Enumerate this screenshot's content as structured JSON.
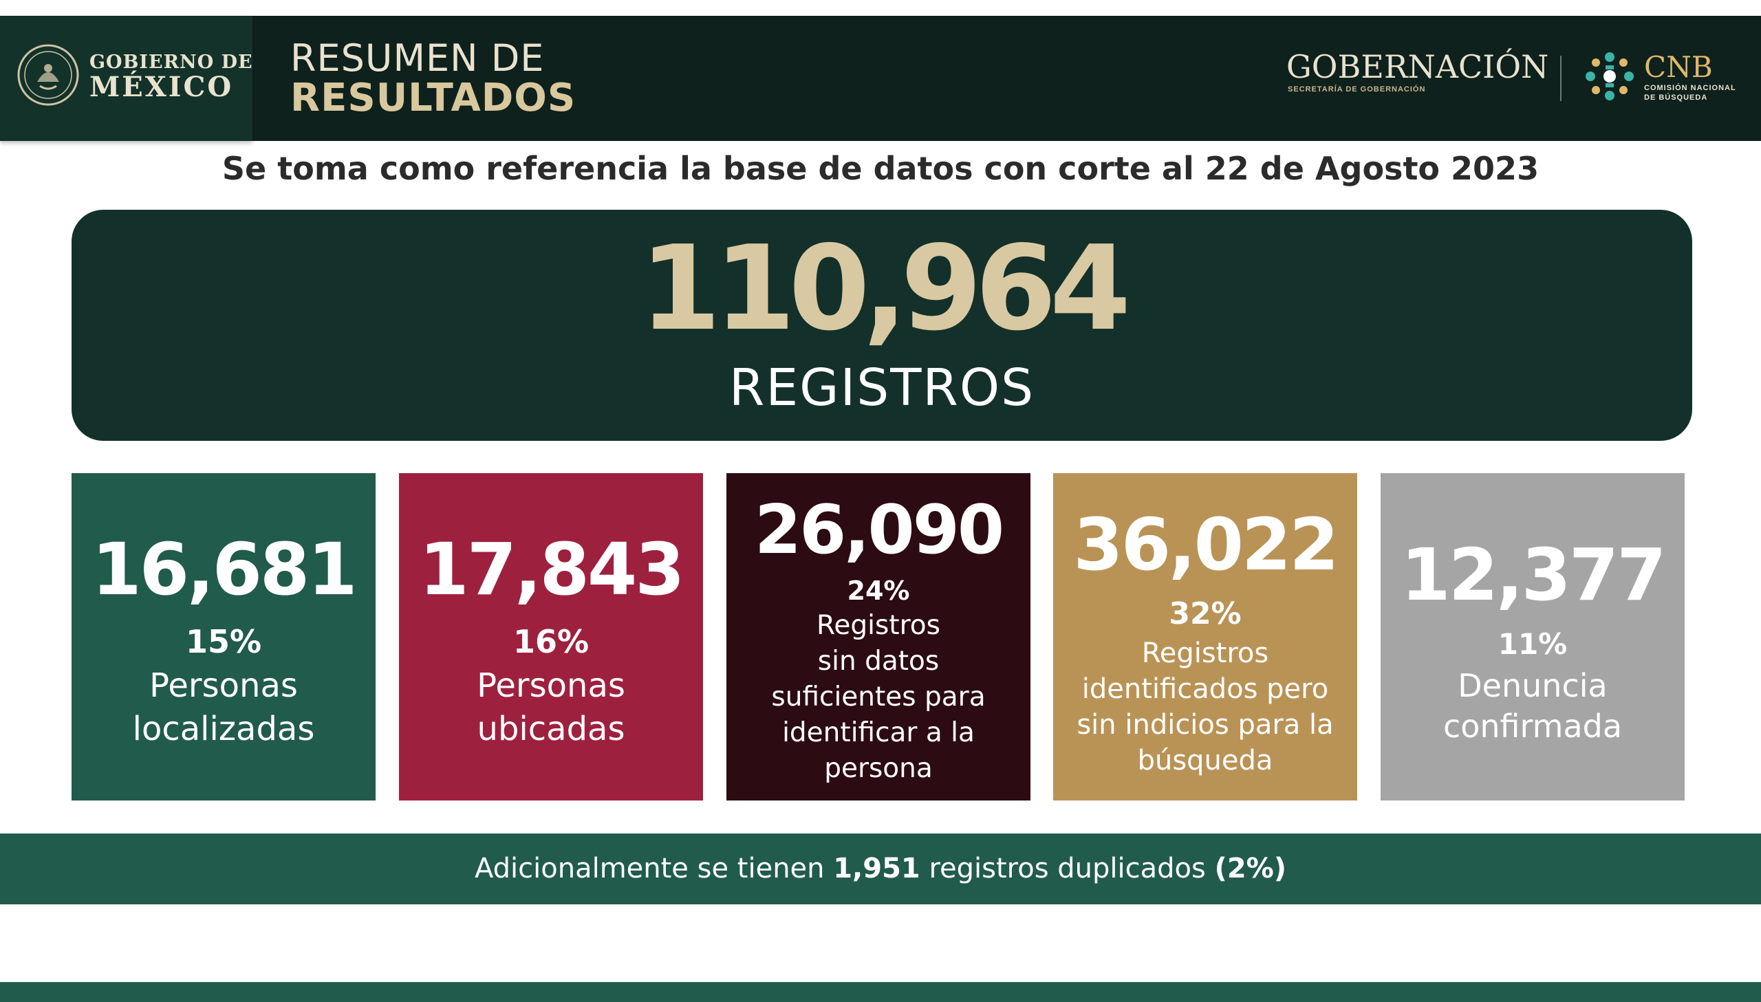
{
  "header": {
    "gov_line1": "GOBIERNO DE",
    "gov_line2": "MÉXICO",
    "title_line1": "RESUMEN DE",
    "title_line2": "RESULTADOS",
    "gobernacion": "GOBERNACIÓN",
    "secretaria": "SECRETARÍA DE GOBERNACIÓN",
    "cnb": "CNB",
    "cnb_sub1": "COMISIÓN NACIONAL",
    "cnb_sub2": "DE BÚSQUEDA"
  },
  "subtitle": "Se toma como referencia la base de datos con corte al 22 de Agosto 2023",
  "total": {
    "value": "110,964",
    "label": "REGISTROS"
  },
  "cards": [
    {
      "value": "16,681",
      "pct": "15%",
      "desc": "Personas\nlocalizadas",
      "color": "#215b4c"
    },
    {
      "value": "17,843",
      "pct": "16%",
      "desc": "Personas\nubicadas",
      "color": "#9e203f"
    },
    {
      "value": "26,090",
      "pct": "24%",
      "desc": "Registros\nsin datos\nsuficientes para\nidentificar a la\npersona",
      "color": "#2c0b13"
    },
    {
      "value": "36,022",
      "pct": "32%",
      "desc": "Registros\nidentificados pero\nsin indicios para la\nbúsqueda",
      "color": "#b99356"
    },
    {
      "value": "12,377",
      "pct": "11%",
      "desc": "Denuncia\nconfirmada",
      "color": "#a5a5a5"
    }
  ],
  "footer": {
    "prefix": "Adicionalmente se tienen ",
    "count": "1,951",
    "middle": " registros duplicados ",
    "pct": "(2%)"
  },
  "colors": {
    "header_bg": "#0f211d",
    "accent_gold": "#d8c9a2",
    "green": "#215b4c"
  }
}
